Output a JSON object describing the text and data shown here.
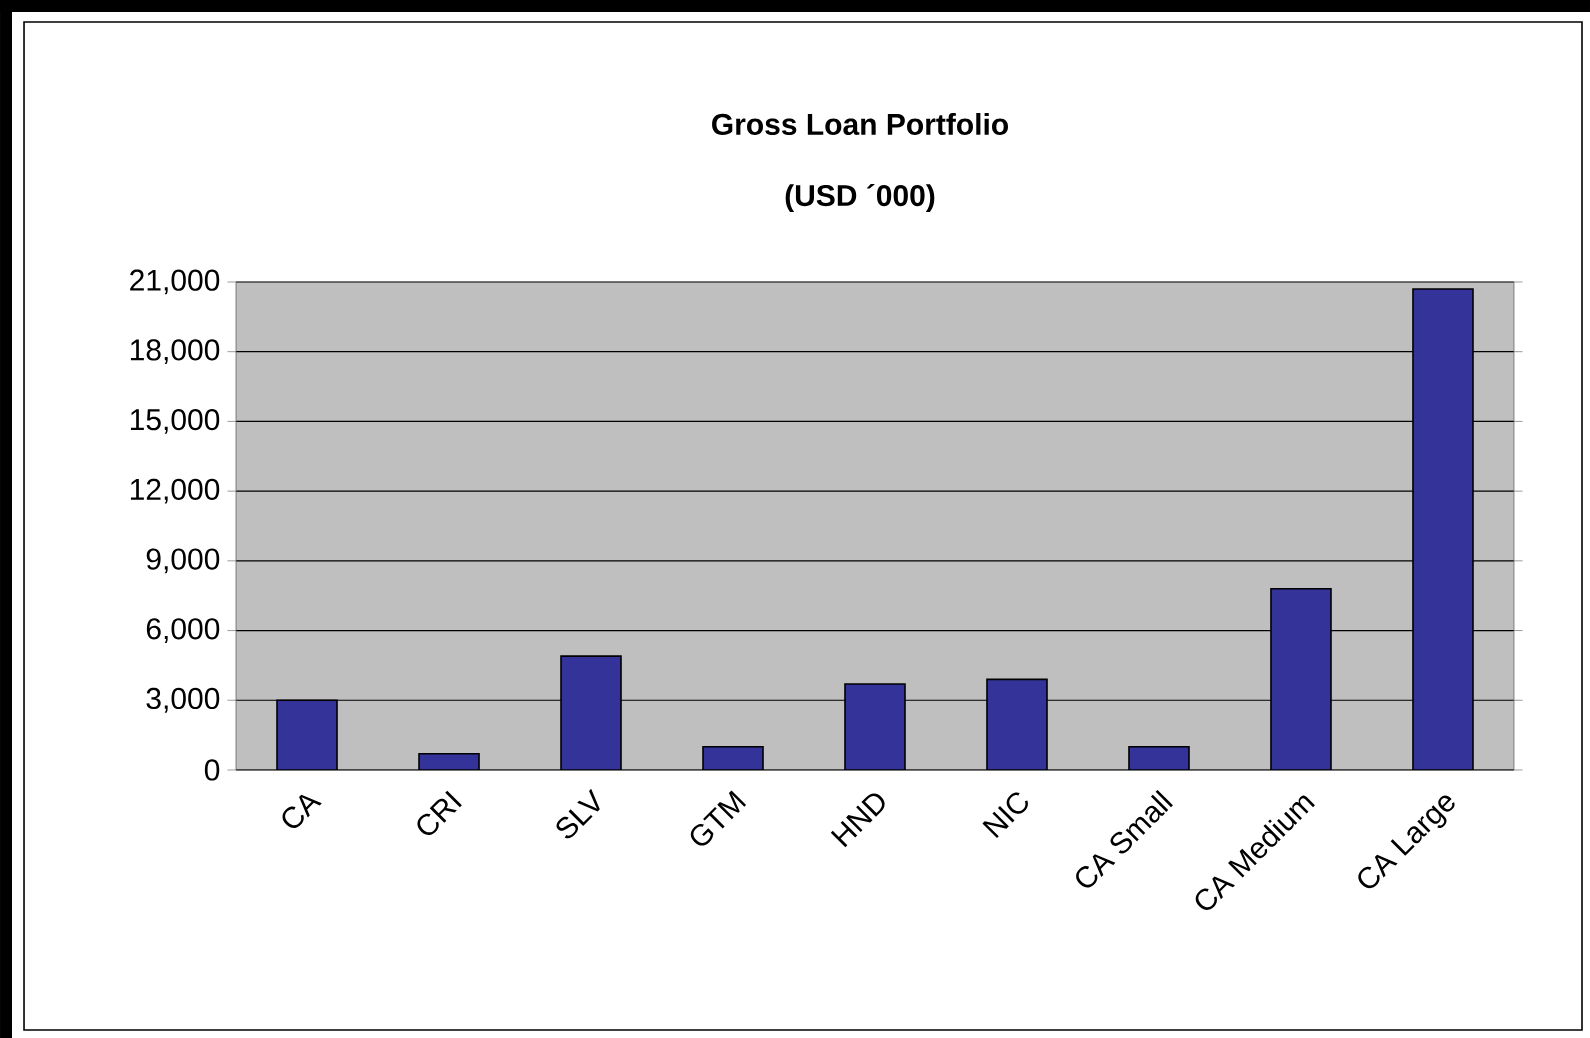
{
  "chart_data": {
    "type": "bar",
    "title": "Gross Loan Portfolio",
    "subtitle": "(USD ´000)",
    "categories": [
      "CA",
      "CRI",
      "SLV",
      "GTM",
      "HND",
      "NIC",
      "CA Small",
      "CA Medium",
      "CA Large"
    ],
    "values": [
      3000,
      700,
      4900,
      1000,
      3700,
      3900,
      1000,
      7800,
      20700
    ],
    "color": "#333399",
    "ylim": [
      0,
      21000
    ],
    "yticks": [
      {
        "value": 0,
        "label": "0"
      },
      {
        "value": 3000,
        "label": "3,000"
      },
      {
        "value": 6000,
        "label": "6,000"
      },
      {
        "value": 9000,
        "label": "9,000"
      },
      {
        "value": 12000,
        "label": "12,000"
      },
      {
        "value": 15000,
        "label": "15,000"
      },
      {
        "value": 18000,
        "label": "18,000"
      },
      {
        "value": 21000,
        "label": "21,000"
      }
    ],
    "grid": "y"
  }
}
